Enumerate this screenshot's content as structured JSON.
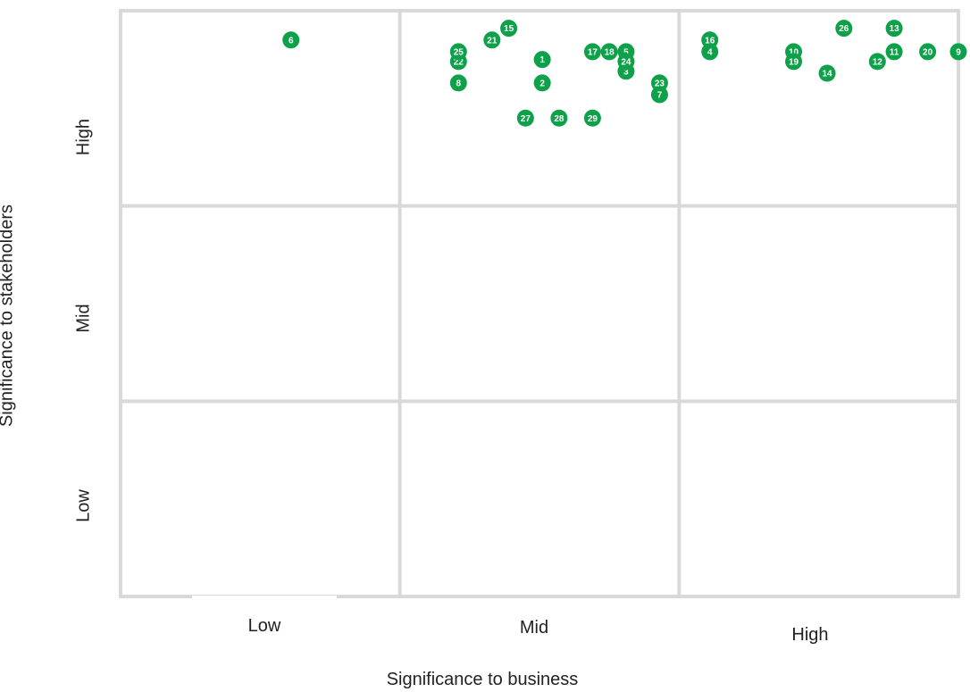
{
  "chart_data": {
    "type": "scatter",
    "title": "",
    "xlabel": "Significance to business",
    "ylabel": "Significance to stakeholders",
    "x_categories": [
      "Low",
      "Mid",
      "High"
    ],
    "y_categories": [
      "Low",
      "Mid",
      "High"
    ],
    "xlim": [
      0,
      3
    ],
    "ylim": [
      0,
      3
    ],
    "grid": true,
    "marker_color": "#0FA14A",
    "grid_color": "#d9d9d9",
    "points": [
      {
        "label": "1",
        "x": 1.51,
        "y": 2.75
      },
      {
        "label": "2",
        "x": 1.51,
        "y": 2.63
      },
      {
        "label": "3",
        "x": 1.81,
        "y": 2.69
      },
      {
        "label": "4",
        "x": 2.11,
        "y": 2.79
      },
      {
        "label": "5",
        "x": 1.81,
        "y": 2.79
      },
      {
        "label": "6",
        "x": 0.61,
        "y": 2.85
      },
      {
        "label": "7",
        "x": 1.93,
        "y": 2.57
      },
      {
        "label": "8",
        "x": 1.21,
        "y": 2.63
      },
      {
        "label": "9",
        "x": 3.0,
        "y": 2.79
      },
      {
        "label": "10",
        "x": 2.41,
        "y": 2.79
      },
      {
        "label": "11",
        "x": 2.77,
        "y": 2.79
      },
      {
        "label": "12",
        "x": 2.71,
        "y": 2.74
      },
      {
        "label": "13",
        "x": 2.77,
        "y": 2.91
      },
      {
        "label": "14",
        "x": 2.53,
        "y": 2.68
      },
      {
        "label": "15",
        "x": 1.39,
        "y": 2.91
      },
      {
        "label": "16",
        "x": 2.11,
        "y": 2.85
      },
      {
        "label": "17",
        "x": 1.69,
        "y": 2.79
      },
      {
        "label": "18",
        "x": 1.75,
        "y": 2.79
      },
      {
        "label": "19",
        "x": 2.41,
        "y": 2.74
      },
      {
        "label": "20",
        "x": 2.89,
        "y": 2.79
      },
      {
        "label": "21",
        "x": 1.33,
        "y": 2.85
      },
      {
        "label": "22",
        "x": 1.21,
        "y": 2.74
      },
      {
        "label": "23",
        "x": 1.93,
        "y": 2.63
      },
      {
        "label": "24",
        "x": 1.81,
        "y": 2.74
      },
      {
        "label": "25",
        "x": 1.21,
        "y": 2.79
      },
      {
        "label": "26",
        "x": 2.59,
        "y": 2.91
      },
      {
        "label": "27",
        "x": 1.45,
        "y": 2.45
      },
      {
        "label": "28",
        "x": 1.57,
        "y": 2.45
      },
      {
        "label": "29",
        "x": 1.69,
        "y": 2.45
      }
    ]
  }
}
